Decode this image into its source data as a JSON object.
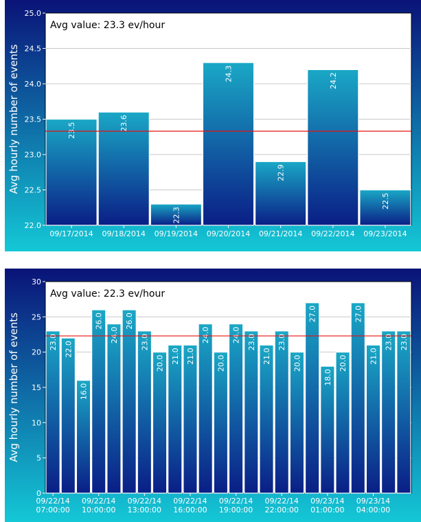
{
  "chart_data": [
    {
      "type": "bar",
      "annotation": "Avg value: 23.3 ev/hour",
      "ylabel": "Avg hourly number of events",
      "xlabel": "",
      "ylim": [
        22.0,
        25.0
      ],
      "yticks": [
        "22.0",
        "22.5",
        "23.0",
        "23.5",
        "24.0",
        "24.5",
        "25.0"
      ],
      "categories": [
        "09/17/2014",
        "09/18/2014",
        "09/19/2014",
        "09/20/2014",
        "09/21/2014",
        "09/22/2014",
        "09/23/2014"
      ],
      "values": [
        23.5,
        23.6,
        22.3,
        24.3,
        22.9,
        24.2,
        22.5
      ],
      "value_labels": [
        "23.5",
        "23.6",
        "22.3",
        "24.3",
        "22.9",
        "24.2",
        "22.5"
      ],
      "average": 23.33,
      "grid": true,
      "colors": {
        "background_top": "#0a1378",
        "background_bottom": "#14c8d6",
        "bar_top": "#1aa8c6",
        "bar_bottom": "#0a1e86",
        "average_line": "#e81010",
        "plot_bg": "#ffffff"
      }
    },
    {
      "type": "bar",
      "annotation": "Avg value: 22.3 ev/hour",
      "ylabel": "Avg hourly number of events",
      "xlabel": "",
      "ylim": [
        0,
        30
      ],
      "yticks": [
        "0",
        "5",
        "10",
        "15",
        "20",
        "25",
        "30"
      ],
      "categories": [
        "09/22/14 07:00:00",
        "",
        "",
        "09/22/14 10:00:00",
        "",
        "",
        "09/22/14 13:00:00",
        "",
        "",
        "09/22/14 16:00:00",
        "",
        "",
        "09/22/14 19:00:00",
        "",
        "",
        "09/22/14 22:00:00",
        "",
        "",
        "09/23/14 01:00:00",
        "",
        "",
        "09/23/14 04:00:00",
        "",
        ""
      ],
      "tick_lines": [
        [
          "09/22/14",
          "07:00:00"
        ],
        [
          "09/22/14",
          "10:00:00"
        ],
        [
          "09/22/14",
          "13:00:00"
        ],
        [
          "09/22/14",
          "16:00:00"
        ],
        [
          "09/22/14",
          "19:00:00"
        ],
        [
          "09/22/14",
          "22:00:00"
        ],
        [
          "09/23/14",
          "01:00:00"
        ],
        [
          "09/23/14",
          "04:00:00"
        ]
      ],
      "values": [
        23,
        22,
        16,
        26,
        24,
        26,
        23,
        20,
        21,
        21,
        24,
        20,
        24,
        23,
        21,
        23,
        20,
        27,
        18,
        20,
        27,
        21,
        23,
        23
      ],
      "value_labels": [
        "23.0",
        "22.0",
        "16.0",
        "26.0",
        "24.0",
        "26.0",
        "23.0",
        "20.0",
        "21.0",
        "21.0",
        "24.0",
        "20.0",
        "24.0",
        "23.0",
        "21.0",
        "23.0",
        "20.0",
        "27.0",
        "18.0",
        "20.0",
        "27.0",
        "21.0",
        "23.0",
        "23.0"
      ],
      "average": 22.3,
      "grid": true,
      "colors": {
        "background_top": "#0a1378",
        "background_bottom": "#14c8d6",
        "bar_top": "#1aa8c6",
        "bar_bottom": "#0a1e86",
        "average_line": "#e81010",
        "plot_bg": "#ffffff"
      }
    }
  ]
}
